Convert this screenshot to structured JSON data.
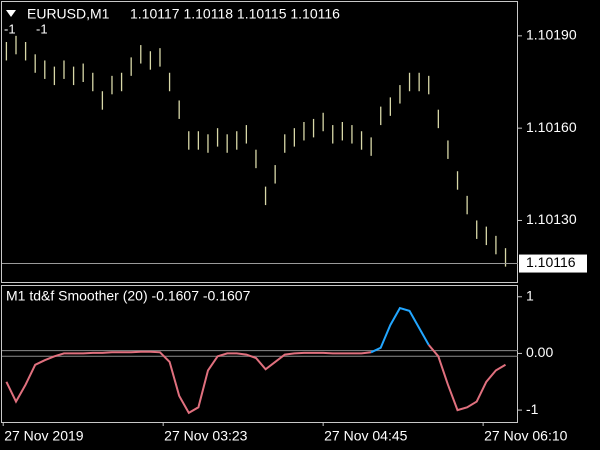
{
  "chart_data": [
    {
      "type": "ohlc",
      "title": "EURUSD,M1",
      "quote": "1.10117 1.10118 1.10115 1.10116",
      "annotations": [
        "-1",
        "-1"
      ],
      "color": "#d8d8a8",
      "current_price": 1.10116,
      "current_color": "#9a9a9a",
      "xlim": [
        -1,
        160.9
      ],
      "ylim": [
        1.1011,
        1.10201
      ],
      "yticks": [
        {
          "value": 1.1019,
          "label": "1.10190"
        },
        {
          "value": 1.1016,
          "label": "1.10160"
        },
        {
          "value": 1.1013,
          "label": "1.10130"
        }
      ],
      "x": [
        1,
        4,
        7,
        10,
        13,
        16,
        19,
        22,
        25,
        28,
        31,
        34,
        37,
        40,
        43,
        46,
        49,
        52,
        55,
        58,
        61,
        64,
        67,
        70,
        73,
        76,
        79,
        82,
        85,
        88,
        91,
        94,
        97,
        100,
        103,
        106,
        109,
        112,
        115,
        118,
        121,
        124,
        127,
        130,
        133,
        136,
        139,
        142,
        145,
        148,
        151,
        154,
        157
      ],
      "highs": [
        1.10188,
        1.1019,
        1.10188,
        1.10184,
        1.10182,
        1.1018,
        1.10182,
        1.1018,
        1.10181,
        1.10178,
        1.10172,
        1.10177,
        1.10178,
        1.10183,
        1.10187,
        1.10185,
        1.10186,
        1.10178,
        1.10169,
        1.10159,
        1.10159,
        1.10158,
        1.1016,
        1.10158,
        1.10159,
        1.10161,
        1.10153,
        1.10141,
        1.10148,
        1.10158,
        1.1016,
        1.10162,
        1.10163,
        1.10165,
        1.10161,
        1.10162,
        1.10161,
        1.10159,
        1.10157,
        1.10167,
        1.1017,
        1.10174,
        1.10178,
        1.10178,
        1.10177,
        1.10166,
        1.10156,
        1.10146,
        1.10138,
        1.1013,
        1.10128,
        1.10125,
        1.10121
      ],
      "lows": [
        1.10182,
        1.10184,
        1.10182,
        1.10178,
        1.10176,
        1.10174,
        1.10176,
        1.10174,
        1.10175,
        1.10172,
        1.10166,
        1.10171,
        1.10172,
        1.10177,
        1.10181,
        1.10179,
        1.1018,
        1.10172,
        1.10163,
        1.10153,
        1.10153,
        1.10152,
        1.10154,
        1.10152,
        1.10153,
        1.10155,
        1.10147,
        1.10135,
        1.10142,
        1.10152,
        1.10154,
        1.10156,
        1.10157,
        1.10159,
        1.10155,
        1.10156,
        1.10155,
        1.10153,
        1.10151,
        1.10161,
        1.10164,
        1.10168,
        1.10172,
        1.10172,
        1.10171,
        1.1016,
        1.1015,
        1.1014,
        1.10132,
        1.10124,
        1.10122,
        1.10119,
        1.10115
      ]
    },
    {
      "type": "line",
      "title": "M1 td&f Smoother (20) -0.1607 -0.1607",
      "xlim": [
        -1,
        160.9
      ],
      "ylim": [
        -1.21,
        1.19
      ],
      "yticks": [
        1,
        {
          "value": 0,
          "label": "0.00"
        },
        -1
      ],
      "levels": [
        0.05,
        -0.05
      ],
      "level_color": "#8a8a8a",
      "xticks": [
        {
          "value": 0,
          "label": "27 Nov 2019"
        },
        {
          "value": 50,
          "label": "27 Nov 03:23"
        },
        {
          "value": 100,
          "label": "27 Nov 04:45"
        },
        {
          "value": 150,
          "label": "27 Nov 06:10"
        }
      ],
      "x": [
        1,
        4,
        7,
        10,
        13,
        16,
        19,
        22,
        25,
        28,
        31,
        34,
        37,
        40,
        43,
        46,
        49,
        52,
        55,
        58,
        61,
        64,
        67,
        70,
        73,
        76,
        79,
        82,
        85,
        88,
        91,
        94,
        97,
        100,
        103,
        106,
        109,
        112,
        115,
        118,
        121,
        124,
        127,
        130,
        133,
        136,
        139,
        142,
        145,
        148,
        151,
        154,
        157
      ],
      "series": [
        {
          "color": "#e0707e",
          "values": [
            -0.5,
            -0.85,
            -0.55,
            -0.2,
            -0.12,
            -0.05,
            0,
            0,
            0,
            0.01,
            0.01,
            0.02,
            0.02,
            0.02,
            0.03,
            0.03,
            0.02,
            -0.15,
            -0.75,
            -1.05,
            -0.95,
            -0.3,
            -0.05,
            0,
            0,
            -0.02,
            -0.08,
            -0.28,
            -0.15,
            -0.02,
            0,
            0.01,
            0.01,
            0.01,
            0,
            0,
            0,
            0,
            0.02,
            null,
            null,
            null,
            null,
            null,
            0.15,
            -0.05,
            -0.55,
            -1.0,
            -0.95,
            -0.85,
            -0.5,
            -0.3,
            -0.2
          ]
        },
        {
          "color": "#22a6ff",
          "values": [
            null,
            null,
            null,
            null,
            null,
            null,
            null,
            null,
            null,
            null,
            null,
            null,
            null,
            null,
            null,
            null,
            null,
            null,
            null,
            null,
            null,
            null,
            null,
            null,
            null,
            null,
            null,
            null,
            null,
            null,
            null,
            null,
            null,
            null,
            null,
            null,
            null,
            null,
            0.02,
            0.1,
            0.5,
            0.8,
            0.75,
            0.45,
            0.15,
            null,
            null,
            null,
            null,
            null,
            null,
            null,
            null
          ]
        }
      ]
    }
  ]
}
